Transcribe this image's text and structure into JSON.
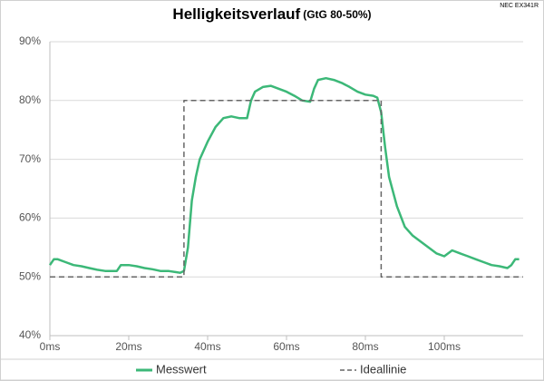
{
  "chart_data": {
    "type": "line",
    "title": "Helligkeitsverlauf",
    "subtitle": "(GtG 80-50%)",
    "annotation": "NEC EX341R",
    "xlim": [
      0,
      120
    ],
    "ylim": [
      40,
      90
    ],
    "xticks": [
      {
        "value": 0,
        "label": "0ms"
      },
      {
        "value": 20,
        "label": "20ms"
      },
      {
        "value": 40,
        "label": "40ms"
      },
      {
        "value": 60,
        "label": "60ms"
      },
      {
        "value": 80,
        "label": "80ms"
      },
      {
        "value": 100,
        "label": "100ms"
      }
    ],
    "yticks": [
      {
        "value": 40,
        "label": "40%"
      },
      {
        "value": 50,
        "label": "50%"
      },
      {
        "value": 60,
        "label": "60%"
      },
      {
        "value": 70,
        "label": "70%"
      },
      {
        "value": 80,
        "label": "80%"
      },
      {
        "value": 90,
        "label": "90%"
      }
    ],
    "grid": true,
    "legend": "bottom",
    "series": [
      {
        "name": "Messwert",
        "color": "#3cb878",
        "dashed": false,
        "x": [
          0,
          1,
          2,
          4,
          6,
          8,
          10,
          12,
          14,
          16,
          17,
          18,
          20,
          22,
          24,
          26,
          28,
          30,
          32,
          33,
          34,
          35,
          36,
          37,
          38,
          40,
          42,
          44,
          46,
          48,
          50,
          51,
          52,
          54,
          56,
          58,
          60,
          62,
          64,
          66,
          67,
          68,
          70,
          72,
          74,
          76,
          78,
          80,
          82,
          83,
          84,
          85,
          86,
          88,
          90,
          92,
          94,
          96,
          98,
          100,
          102,
          104,
          106,
          108,
          110,
          112,
          114,
          116,
          117,
          118,
          119
        ],
        "values": [
          52,
          53,
          53,
          52.5,
          52,
          51.8,
          51.5,
          51.2,
          51,
          51,
          51,
          52,
          52,
          51.8,
          51.5,
          51.3,
          51,
          51,
          50.8,
          50.7,
          51,
          55,
          63,
          67,
          70,
          73,
          75.5,
          77,
          77.3,
          77,
          77,
          80,
          81.5,
          82.3,
          82.5,
          82,
          81.5,
          80.8,
          80,
          79.8,
          82,
          83.5,
          83.8,
          83.5,
          83,
          82.3,
          81.5,
          81,
          80.8,
          80.5,
          78,
          72,
          67,
          62,
          58.5,
          57,
          56,
          55,
          54,
          53.5,
          54.5,
          54,
          53.5,
          53,
          52.5,
          52,
          51.8,
          51.5,
          52,
          53,
          53
        ]
      },
      {
        "name": "Ideallinie",
        "color": "#666666",
        "dashed": true,
        "x": [
          0,
          34,
          34,
          84,
          84,
          120
        ],
        "values": [
          50,
          50,
          80,
          80,
          50,
          50
        ]
      }
    ]
  }
}
